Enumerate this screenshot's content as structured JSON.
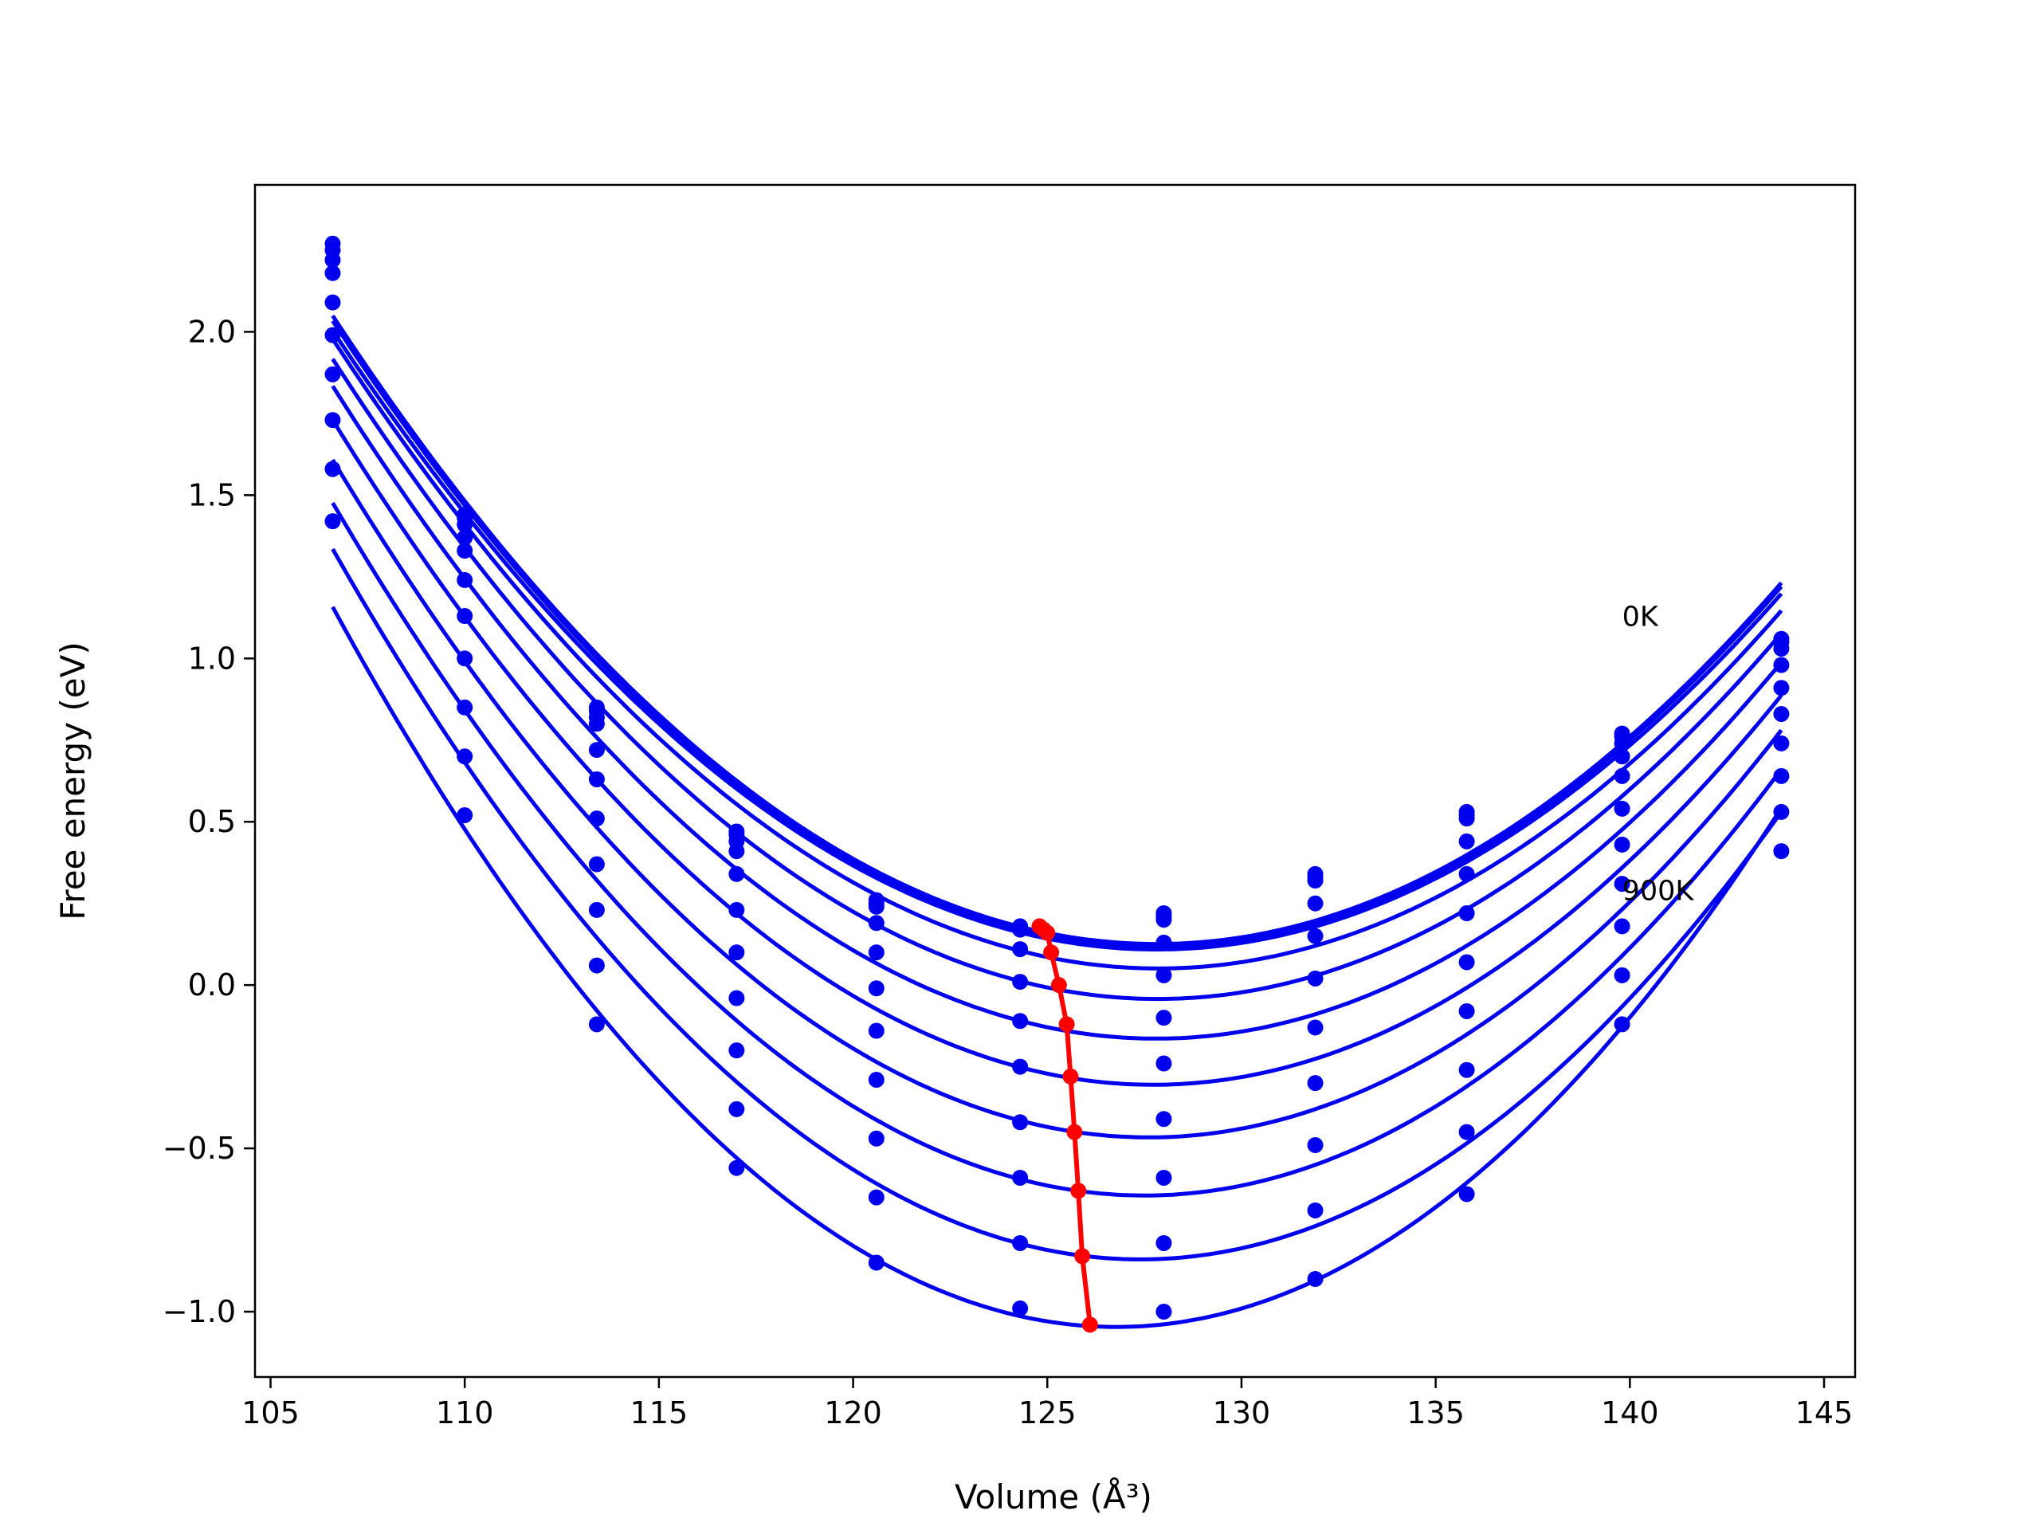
{
  "chart_data": {
    "type": "line",
    "xlabel": "Volume (Å³)",
    "ylabel": "Free energy (eV)",
    "xlim": [
      104.6,
      145.8
    ],
    "ylim": [
      -1.2,
      2.45
    ],
    "xticks": [
      105,
      110,
      115,
      120,
      125,
      130,
      135,
      140,
      145
    ],
    "xtick_labels": [
      "105",
      "110",
      "115",
      "120",
      "125",
      "130",
      "135",
      "140",
      "145"
    ],
    "yticks": [
      -1.0,
      -0.5,
      0.0,
      0.5,
      1.0,
      1.5,
      2.0
    ],
    "ytick_labels": [
      "−1.0",
      "−0.5",
      "0.0",
      "0.5",
      "1.0",
      "1.5",
      "2.0"
    ],
    "grid": false,
    "annotations": [
      {
        "text": "0K",
        "x": 139.8,
        "y": 1.1
      },
      {
        "text": "900K",
        "x": 139.8,
        "y": 0.26
      }
    ],
    "x_points": [
      106.6,
      110.0,
      113.4,
      117.0,
      120.6,
      124.3,
      128.0,
      131.9,
      135.8,
      139.8,
      143.9
    ],
    "series": [
      {
        "y": [
          2.27,
          1.44,
          0.85,
          0.47,
          0.26,
          0.18,
          0.22,
          0.34,
          0.53,
          0.77,
          1.06
        ]
      },
      {
        "y": [
          2.25,
          1.43,
          0.84,
          0.46,
          0.25,
          0.17,
          0.21,
          0.33,
          0.52,
          0.76,
          1.05
        ]
      },
      {
        "y": [
          2.22,
          1.41,
          0.82,
          0.44,
          0.24,
          0.17,
          0.2,
          0.32,
          0.51,
          0.74,
          1.03
        ]
      },
      {
        "y": [
          2.18,
          1.37,
          0.8,
          0.41,
          0.19,
          0.11,
          0.13,
          0.25,
          0.44,
          0.7,
          0.98
        ]
      },
      {
        "y": [
          2.09,
          1.33,
          0.72,
          0.34,
          0.1,
          0.01,
          0.03,
          0.15,
          0.34,
          0.64,
          0.91
        ]
      },
      {
        "y": [
          1.99,
          1.24,
          0.63,
          0.23,
          -0.01,
          -0.11,
          -0.1,
          0.02,
          0.22,
          0.54,
          0.83
        ]
      },
      {
        "y": [
          1.87,
          1.13,
          0.51,
          0.1,
          -0.14,
          -0.25,
          -0.24,
          -0.13,
          0.07,
          0.43,
          0.74
        ]
      },
      {
        "y": [
          1.73,
          1.0,
          0.37,
          -0.04,
          -0.29,
          -0.42,
          -0.41,
          -0.3,
          -0.08,
          0.31,
          0.64
        ]
      },
      {
        "y": [
          1.58,
          0.85,
          0.23,
          -0.2,
          -0.47,
          -0.59,
          -0.59,
          -0.49,
          -0.26,
          0.18,
          0.53
        ]
      },
      {
        "y": [
          1.42,
          0.7,
          0.06,
          -0.38,
          -0.65,
          -0.79,
          -0.79,
          -0.69,
          -0.45,
          0.03,
          0.41
        ]
      },
      {
        "y": [
          null,
          0.52,
          -0.12,
          -0.56,
          -0.85,
          -0.99,
          -1.0,
          -0.9,
          -0.64,
          -0.12,
          null
        ]
      }
    ],
    "minima_curve": {
      "x": [
        124.8,
        124.9,
        125.0,
        125.1,
        125.3,
        125.5,
        125.6,
        125.7,
        125.8,
        125.9,
        126.1
      ],
      "y": [
        0.18,
        0.17,
        0.16,
        0.1,
        0.0,
        -0.12,
        -0.28,
        -0.45,
        -0.63,
        -0.83,
        -1.04
      ]
    },
    "colors": {
      "series": "#0000ee",
      "minima": "#ff0000",
      "axes": "#000000"
    }
  }
}
